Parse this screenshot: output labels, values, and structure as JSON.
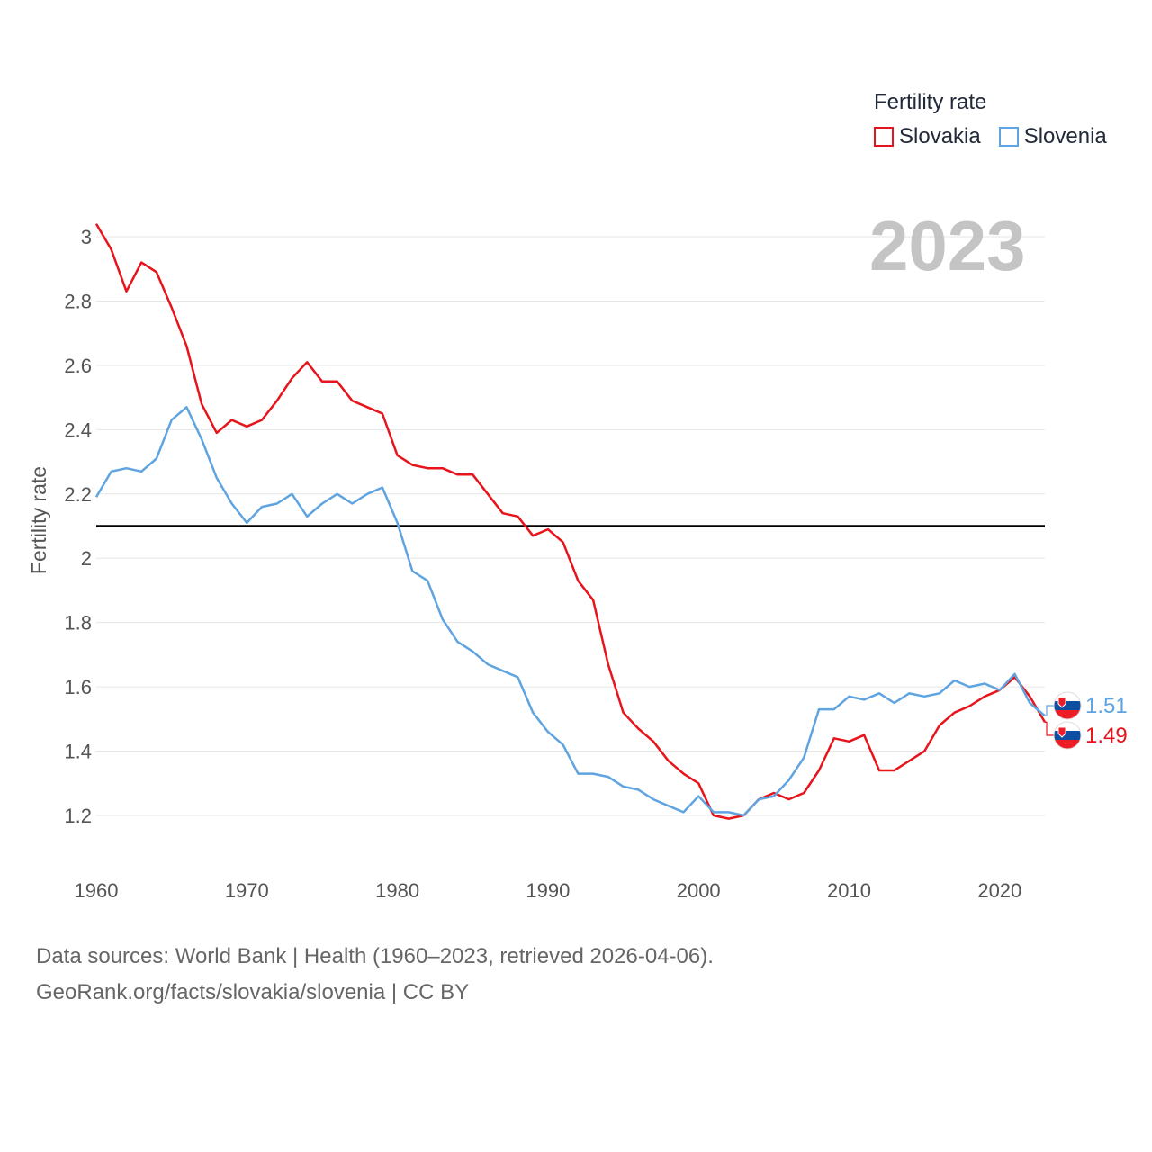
{
  "legend": {
    "title": "Fertility rate",
    "items": [
      {
        "name": "Slovakia",
        "color": "#e8141b"
      },
      {
        "name": "Slovenia",
        "color": "#5fa4e0"
      }
    ]
  },
  "year_label": "2023",
  "source": {
    "line1": "Data sources: World Bank | Health (1960–2023, retrieved 2026-04-06).",
    "line2": "GeoRank.org/facts/slovakia/slovenia | CC BY"
  },
  "chart_data": {
    "type": "line",
    "title": "Fertility rate",
    "xlabel": "",
    "ylabel": "Fertility rate",
    "xlim": [
      1960,
      2023
    ],
    "ylim": [
      1.05,
      3.05
    ],
    "xticks": [
      1960,
      1970,
      1980,
      1990,
      2000,
      2010,
      2020
    ],
    "yticks": [
      1.2,
      1.4,
      1.6,
      1.8,
      2,
      2.2,
      2.4,
      2.6,
      2.8,
      3
    ],
    "reference_line": 2.1,
    "grid": true,
    "legend_position": "top-right",
    "x": [
      1960,
      1961,
      1962,
      1963,
      1964,
      1965,
      1966,
      1967,
      1968,
      1969,
      1970,
      1971,
      1972,
      1973,
      1974,
      1975,
      1976,
      1977,
      1978,
      1979,
      1980,
      1981,
      1982,
      1983,
      1984,
      1985,
      1986,
      1987,
      1988,
      1989,
      1990,
      1991,
      1992,
      1993,
      1994,
      1995,
      1996,
      1997,
      1998,
      1999,
      2000,
      2001,
      2002,
      2003,
      2004,
      2005,
      2006,
      2007,
      2008,
      2009,
      2010,
      2011,
      2012,
      2013,
      2014,
      2015,
      2016,
      2017,
      2018,
      2019,
      2020,
      2021,
      2022,
      2023
    ],
    "series": [
      {
        "name": "Slovakia",
        "color": "#e8141b",
        "end_label": "1.49",
        "values": [
          3.04,
          2.96,
          2.83,
          2.92,
          2.89,
          2.78,
          2.66,
          2.48,
          2.39,
          2.43,
          2.41,
          2.43,
          2.49,
          2.56,
          2.61,
          2.55,
          2.55,
          2.49,
          2.47,
          2.45,
          2.32,
          2.29,
          2.28,
          2.28,
          2.26,
          2.26,
          2.2,
          2.14,
          2.13,
          2.07,
          2.09,
          2.05,
          1.93,
          1.87,
          1.67,
          1.52,
          1.47,
          1.43,
          1.37,
          1.33,
          1.3,
          1.2,
          1.19,
          1.2,
          1.25,
          1.27,
          1.25,
          1.27,
          1.34,
          1.44,
          1.43,
          1.45,
          1.34,
          1.34,
          1.37,
          1.4,
          1.48,
          1.52,
          1.54,
          1.57,
          1.59,
          1.63,
          1.57,
          1.49
        ]
      },
      {
        "name": "Slovenia",
        "color": "#5fa4e0",
        "end_label": "1.51",
        "values": [
          2.19,
          2.27,
          2.28,
          2.27,
          2.31,
          2.43,
          2.47,
          2.37,
          2.25,
          2.17,
          2.11,
          2.16,
          2.17,
          2.2,
          2.13,
          2.17,
          2.2,
          2.17,
          2.2,
          2.22,
          2.11,
          1.96,
          1.93,
          1.81,
          1.74,
          1.71,
          1.67,
          1.65,
          1.63,
          1.52,
          1.46,
          1.42,
          1.33,
          1.33,
          1.32,
          1.29,
          1.28,
          1.25,
          1.23,
          1.21,
          1.26,
          1.21,
          1.21,
          1.2,
          1.25,
          1.26,
          1.31,
          1.38,
          1.53,
          1.53,
          1.57,
          1.56,
          1.58,
          1.55,
          1.58,
          1.57,
          1.58,
          1.62,
          1.6,
          1.61,
          1.59,
          1.64,
          1.55,
          1.51
        ]
      }
    ]
  }
}
